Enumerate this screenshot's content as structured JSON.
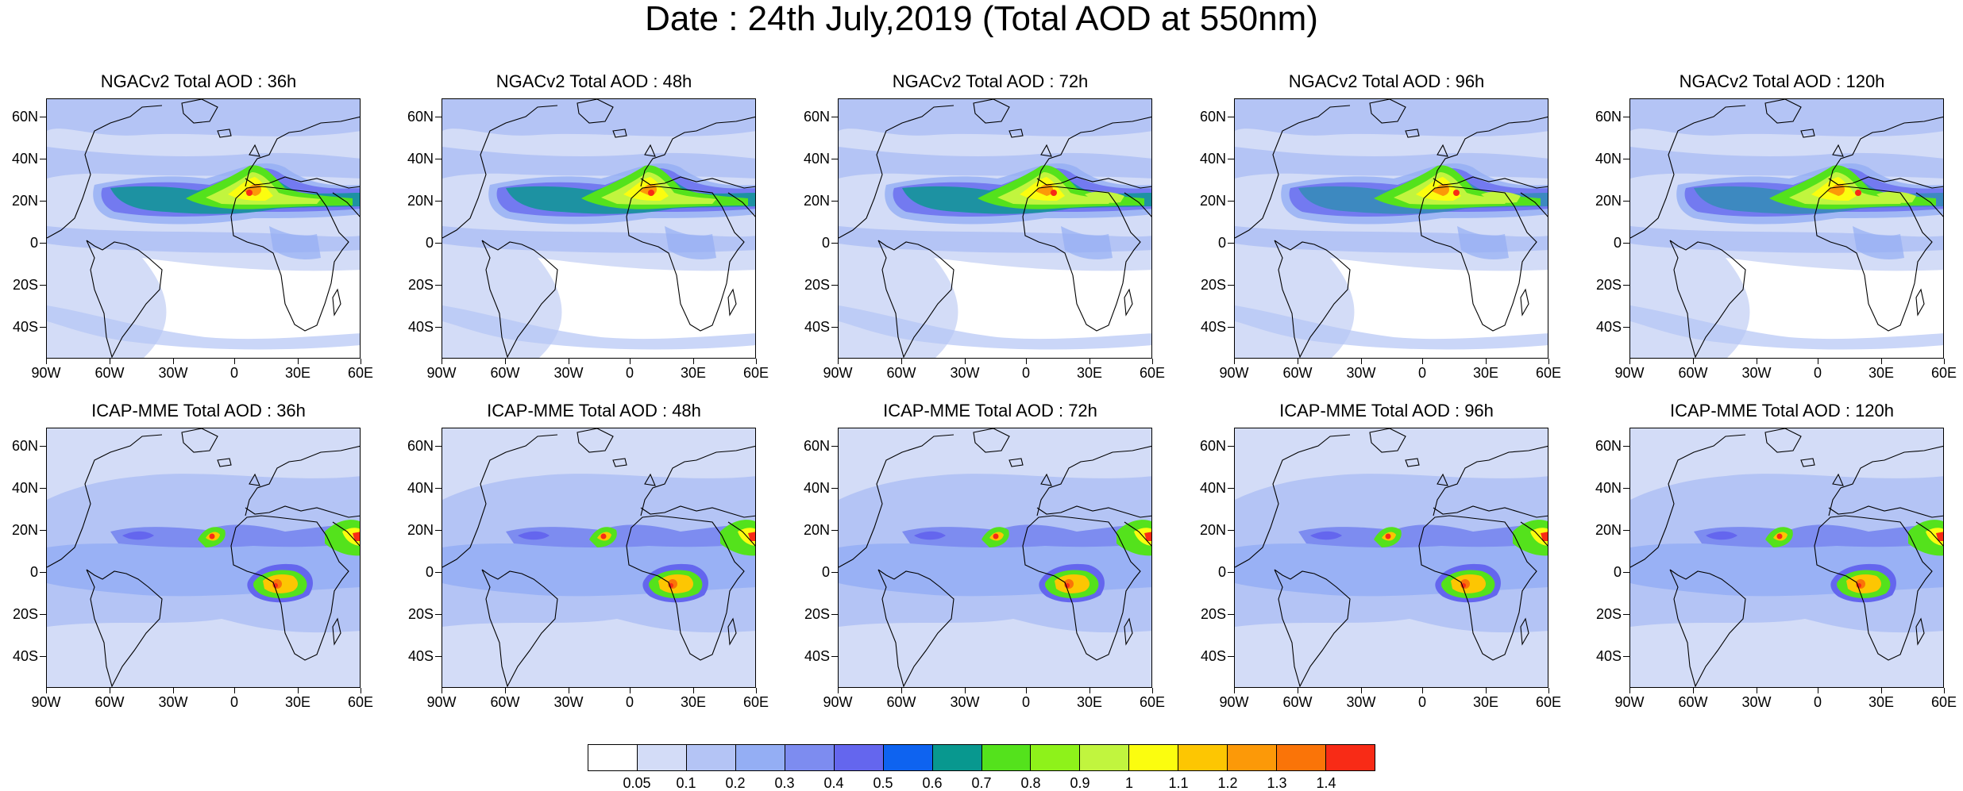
{
  "title": "Date : 24th July,2019 (Total AOD at 550nm)",
  "lat_ticks": [
    "60N",
    "40N",
    "20N",
    "0",
    "20S",
    "40S"
  ],
  "lon_ticks": [
    "90W",
    "60W",
    "30W",
    "0",
    "30E",
    "60E"
  ],
  "panels": [
    {
      "title": "NGACv2 Total AOD : 36h",
      "model": "NGACv2",
      "lead": "36h"
    },
    {
      "title": "NGACv2 Total AOD : 48h",
      "model": "NGACv2",
      "lead": "48h"
    },
    {
      "title": "NGACv2 Total AOD : 72h",
      "model": "NGACv2",
      "lead": "72h"
    },
    {
      "title": "NGACv2 Total AOD : 96h",
      "model": "NGACv2",
      "lead": "96h"
    },
    {
      "title": "NGACv2 Total AOD : 120h",
      "model": "NGACv2",
      "lead": "120h"
    },
    {
      "title": "ICAP-MME Total AOD : 36h",
      "model": "ICAP-MME",
      "lead": "36h"
    },
    {
      "title": "ICAP-MME Total AOD : 48h",
      "model": "ICAP-MME",
      "lead": "48h"
    },
    {
      "title": "ICAP-MME Total AOD : 72h",
      "model": "ICAP-MME",
      "lead": "72h"
    },
    {
      "title": "ICAP-MME Total AOD : 96h",
      "model": "ICAP-MME",
      "lead": "96h"
    },
    {
      "title": "ICAP-MME Total AOD : 120h",
      "model": "ICAP-MME",
      "lead": "120h"
    }
  ],
  "colorbar": {
    "labels": [
      "0.05",
      "0.1",
      "0.2",
      "0.3",
      "0.4",
      "0.5",
      "0.6",
      "0.7",
      "0.8",
      "0.9",
      "1",
      "1.1",
      "1.2",
      "1.3",
      "1.4"
    ],
    "colors": [
      "#ffffff",
      "#d3dcf7",
      "#b4c4f5",
      "#94aef4",
      "#7d8cf0",
      "#6466ee",
      "#0e63f0",
      "#08988f",
      "#54e21c",
      "#8ef21a",
      "#c1f53e",
      "#fbfd0f",
      "#fdc602",
      "#fc9908",
      "#fa7408",
      "#f82b16"
    ]
  }
}
